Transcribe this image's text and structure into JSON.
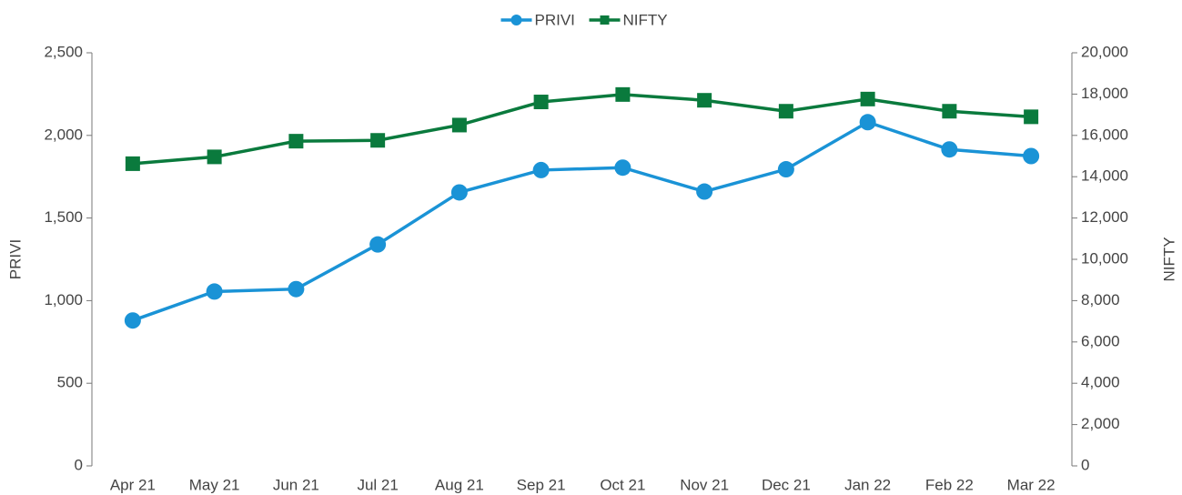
{
  "chart_data": {
    "type": "line",
    "categories": [
      "Apr 21",
      "May 21",
      "Jun 21",
      "Jul 21",
      "Aug 21",
      "Sep 21",
      "Oct 21",
      "Nov 21",
      "Dec 21",
      "Jan 22",
      "Feb 22",
      "Mar 22"
    ],
    "series": [
      {
        "name": "PRIVI",
        "color": "#1a93d6",
        "marker": "circle",
        "values": [
          880,
          1055,
          1070,
          1340,
          1655,
          1790,
          1805,
          1660,
          1795,
          2080,
          1915,
          1875
        ]
      },
      {
        "name": "NIFTY",
        "color": "#0a7a3d",
        "marker": "square",
        "axis": "y2",
        "values": [
          14630,
          14960,
          15720,
          15760,
          16500,
          17620,
          17980,
          17700,
          17170,
          17760,
          17170,
          16900
        ]
      }
    ],
    "ylabel": "PRIVI",
    "y2label": "NIFTY",
    "ylim": [
      0,
      2500
    ],
    "yticks": [
      0,
      500,
      {
        "value": 1000,
        "label": "1,000"
      },
      {
        "value": 1500,
        "label": "1,500"
      },
      {
        "value": 2000,
        "label": "2,000"
      },
      {
        "value": 2500,
        "label": "2,500"
      }
    ],
    "y2lim": [
      0,
      20000
    ],
    "y2ticks": [
      0,
      {
        "value": 2000,
        "label": "2,000"
      },
      {
        "value": 4000,
        "label": "4,000"
      },
      {
        "value": 6000,
        "label": "6,000"
      },
      {
        "value": 8000,
        "label": "8,000"
      },
      {
        "value": 10000,
        "label": "10,000"
      },
      {
        "value": 12000,
        "label": "12,000"
      },
      {
        "value": 14000,
        "label": "14,000"
      },
      {
        "value": 16000,
        "label": "16,000"
      },
      {
        "value": 18000,
        "label": "18,000"
      },
      {
        "value": 20000,
        "label": "20,000"
      }
    ],
    "grid": false,
    "legend": "top"
  }
}
